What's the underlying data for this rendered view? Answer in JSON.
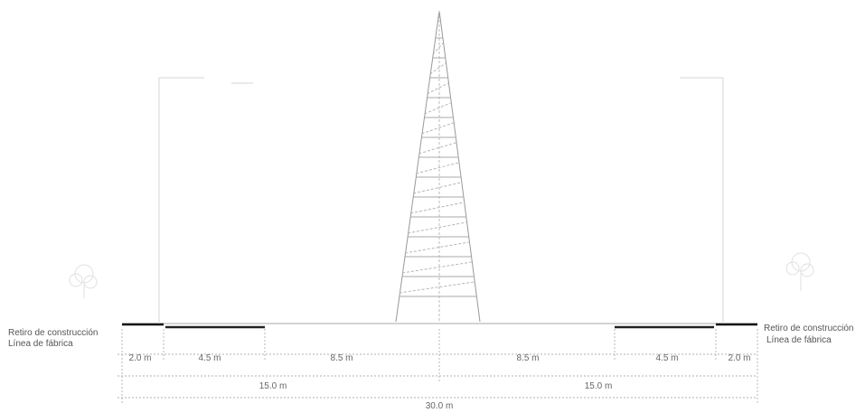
{
  "left_labels": {
    "setback": "Retiro de construcción",
    "building_line": "Línea de fábrica"
  },
  "right_labels": {
    "setback": "Retiro de construcción",
    "building_line": "Línea de fábrica"
  },
  "dimensions": {
    "row1": [
      "2.0 m",
      "4.5 m",
      "8.5 m",
      "8.5 m",
      "4.5 m",
      "2.0 m"
    ],
    "row2": [
      "15.0 m",
      "15.0 m"
    ],
    "row3": "30.0 m"
  },
  "colors": {
    "line": "#888888",
    "setback_bar": "#111111",
    "text": "#555555"
  }
}
